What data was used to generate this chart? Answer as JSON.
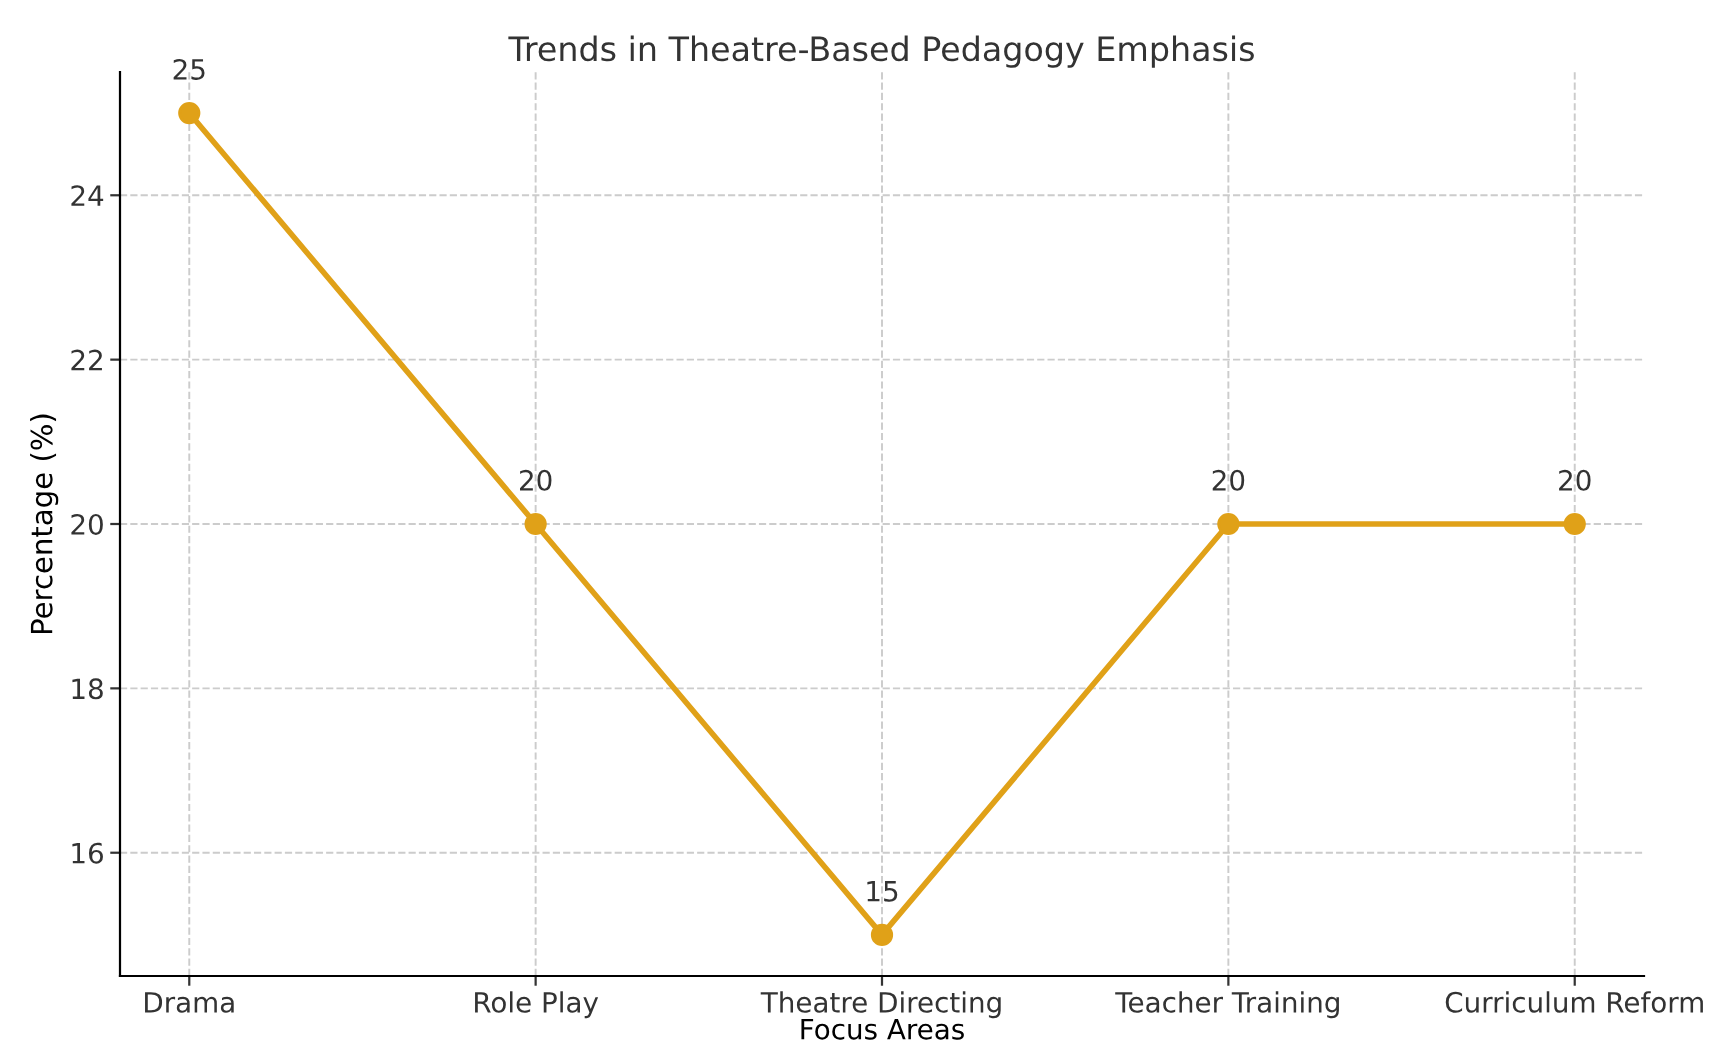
{
  "chart_data": {
    "type": "line",
    "title": "Trends in Theatre-Based Pedagogy Emphasis",
    "xlabel": "Focus Areas",
    "ylabel": "Percentage (%)",
    "categories": [
      "Drama",
      "Role Play",
      "Theatre Directing",
      "Teacher Training",
      "Curriculum Reform"
    ],
    "series": [
      {
        "color": "#e0a118",
        "values": [
          25,
          20,
          15,
          20,
          20
        ]
      }
    ],
    "ylim": [
      14.5,
      25.5
    ],
    "yticks": [
      16,
      18,
      20,
      22,
      24
    ],
    "grid": true,
    "marker": "circle",
    "line_style": "solid",
    "data_labels": true,
    "legend": false
  }
}
